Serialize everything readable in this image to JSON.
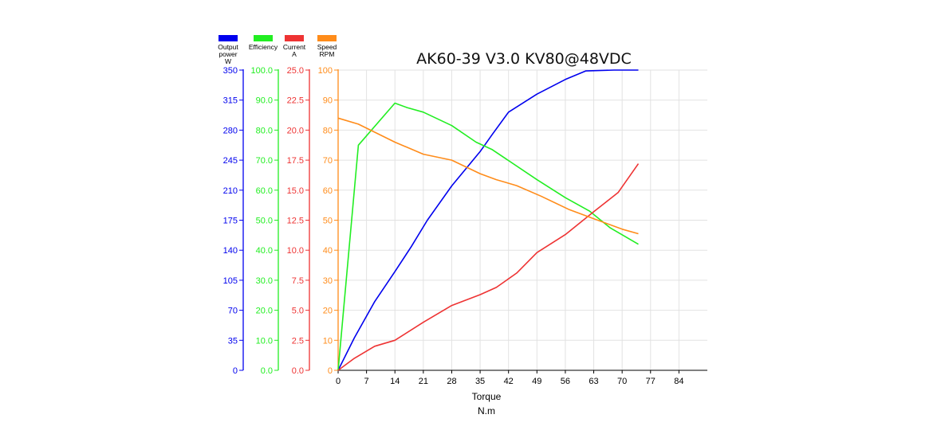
{
  "chart_data": {
    "type": "line",
    "title": "AK60-39 V3.0 KV80@48VDC",
    "xlabel": "Torque",
    "xunit": "N.m",
    "xlim": [
      0,
      91
    ],
    "x_ticks": [
      "0",
      "7",
      "14",
      "21",
      "28",
      "35",
      "42",
      "49",
      "56",
      "63",
      "70",
      "77",
      "84"
    ],
    "grid": true,
    "legend_placement": "top-left",
    "series": [
      {
        "name": "Output power",
        "unit": "W",
        "color": "#0000ee",
        "ylim": [
          0,
          350
        ],
        "y_ticks": [
          "0",
          "35",
          "70",
          "105",
          "140",
          "175",
          "210",
          "245",
          "280",
          "315",
          "350"
        ],
        "x": [
          0,
          4,
          9,
          14,
          18,
          22,
          28,
          35,
          38,
          42,
          49,
          56,
          61,
          68,
          74
        ],
        "values": [
          0,
          38,
          80,
          115,
          144,
          175,
          215,
          255,
          275,
          301,
          322,
          339,
          349,
          357,
          370
        ]
      },
      {
        "name": "Efficiency",
        "unit": "",
        "color": "#22ee22",
        "ylim": [
          0,
          100
        ],
        "y_ticks": [
          "0.0",
          "10.0",
          "20.0",
          "30.0",
          "40.0",
          "50.0",
          "60.0",
          "70.0",
          "80.0",
          "90.0",
          "100.0"
        ],
        "x": [
          0,
          5,
          14,
          17,
          21,
          28,
          34,
          38,
          49,
          56,
          62,
          67,
          74
        ],
        "values": [
          0,
          75,
          89,
          87.5,
          86,
          81.5,
          76,
          73.5,
          63.5,
          57.5,
          53,
          47.5,
          42
        ]
      },
      {
        "name": "Current",
        "unit": "A",
        "color": "#ee3333",
        "ylim": [
          0,
          25
        ],
        "y_ticks": [
          "0.0",
          "2.5",
          "5.0",
          "7.5",
          "10.0",
          "12.5",
          "15.0",
          "17.5",
          "20.0",
          "22.5",
          "25.0"
        ],
        "x": [
          0,
          4,
          9,
          14,
          21,
          28,
          35,
          39,
          44,
          49,
          56,
          63,
          69,
          74
        ],
        "values": [
          0,
          1.0,
          2.0,
          2.5,
          4.0,
          5.4,
          6.3,
          6.9,
          8.1,
          9.8,
          11.3,
          13.2,
          14.8,
          17.2
        ]
      },
      {
        "name": "Speed",
        "unit": "RPM",
        "color": "#ff8c1a",
        "ylim": [
          0,
          100
        ],
        "y_ticks": [
          "0",
          "10",
          "20",
          "30",
          "40",
          "50",
          "60",
          "70",
          "80",
          "90",
          "100"
        ],
        "x": [
          0,
          5,
          14,
          21,
          28,
          35,
          39,
          44,
          50,
          57,
          63,
          70,
          74
        ],
        "values": [
          84,
          82,
          76,
          72,
          70,
          65.5,
          63.5,
          61.5,
          58,
          53.5,
          50.5,
          47,
          45.5
        ]
      }
    ]
  }
}
